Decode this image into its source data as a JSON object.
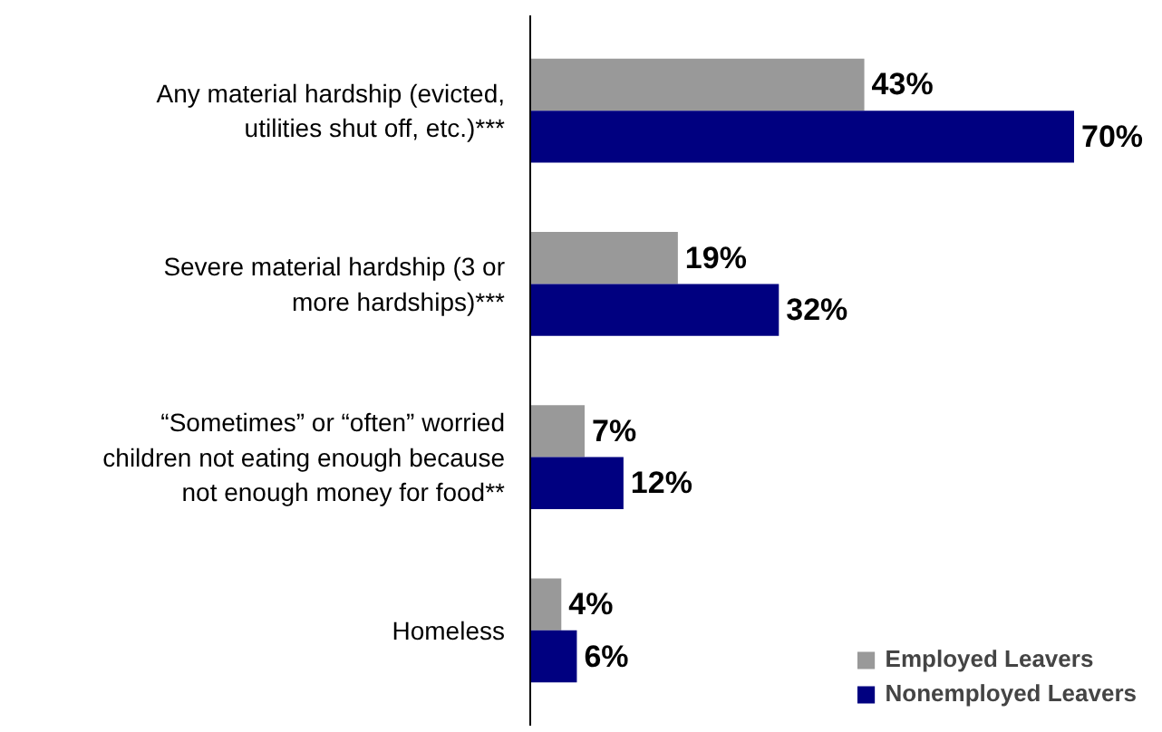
{
  "chart_data": {
    "type": "bar",
    "orientation": "horizontal",
    "tick_labels": "y",
    "categories": [
      "Any material hardship (evicted, utilities shut off, etc.)***",
      "Severe material hardship (3 or more hardships)***",
      "“Sometimes” or “often” worried children not eating enough because not enough money for food**",
      "Homeless"
    ],
    "series": [
      {
        "name": "Employed Leavers",
        "color": "#999999",
        "values": [
          43,
          19,
          7,
          4
        ],
        "value_labels": [
          "43%",
          "19%",
          "7%",
          "4%"
        ]
      },
      {
        "name": "Nonemployed Leavers",
        "color": "#000080",
        "values": [
          70,
          32,
          12,
          6
        ],
        "value_labels": [
          "70%",
          "32%",
          "12%",
          "6%"
        ]
      }
    ],
    "legend": "bottom right",
    "grid": false
  }
}
